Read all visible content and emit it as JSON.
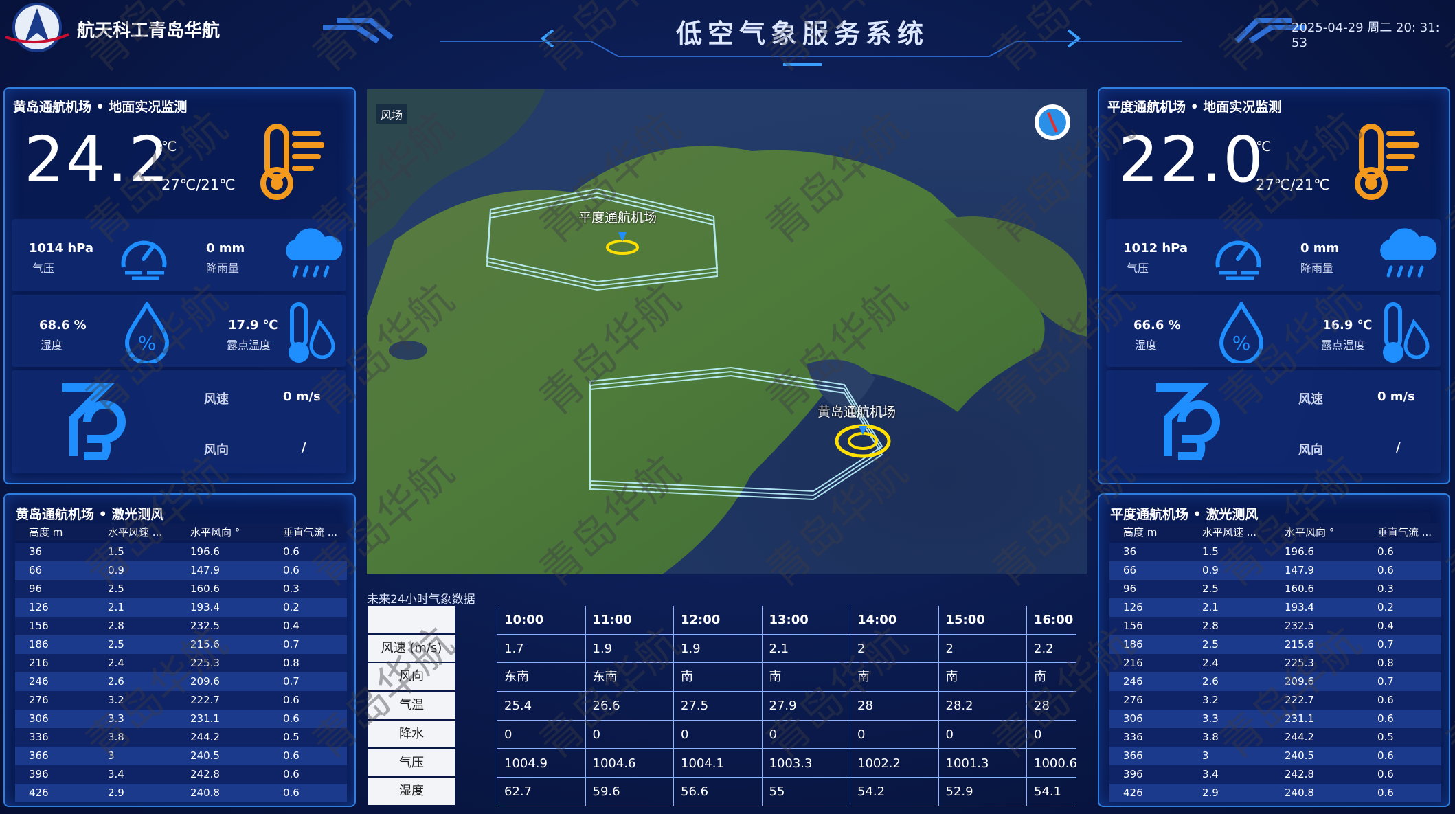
{
  "header": {
    "company": "航天科工青岛华航",
    "title": "低空气象服务系统",
    "datetime": "2025-04-29 周二 20: 31: 53"
  },
  "left_monitor": {
    "title": "黄岛通航机场 • 地面实况监测",
    "temperature": "24.2",
    "temperature_unit": "℃",
    "temperature_range": "27℃/21℃",
    "pressure": "1014 hPa",
    "pressure_label": "气压",
    "rain": "0 mm",
    "rain_label": "降雨量",
    "humidity": "68.6 %",
    "humidity_label": "湿度",
    "dew_point": "17.9 ℃",
    "dew_point_label": "露点温度",
    "wind_speed_label": "风速",
    "wind_speed": "0 m/s",
    "wind_direction_label": "风向",
    "wind_direction": "/"
  },
  "right_monitor": {
    "title": "平度通航机场 • 地面实况监测",
    "temperature": "22.0",
    "temperature_unit": "℃",
    "temperature_range": "27℃/21℃",
    "pressure": "1012 hPa",
    "pressure_label": "气压",
    "rain": "0 mm",
    "rain_label": "降雨量",
    "humidity": "66.6 %",
    "humidity_label": "湿度",
    "dew_point": "16.9 ℃",
    "dew_point_label": "露点温度",
    "wind_speed_label": "风速",
    "wind_speed": "0 m/s",
    "wind_direction_label": "风向",
    "wind_direction": "/"
  },
  "left_lidar": {
    "title": "黄岛通航机场 • 激光测风",
    "columns": [
      "高度 m",
      "水平风速 ...",
      "水平风向 °",
      "垂直气流 ..."
    ],
    "rows": [
      [
        "36",
        "1.5",
        "196.6",
        "0.6"
      ],
      [
        "66",
        "0.9",
        "147.9",
        "0.6"
      ],
      [
        "96",
        "2.5",
        "160.6",
        "0.3"
      ],
      [
        "126",
        "2.1",
        "193.4",
        "0.2"
      ],
      [
        "156",
        "2.8",
        "232.5",
        "0.4"
      ],
      [
        "186",
        "2.5",
        "215.6",
        "0.7"
      ],
      [
        "216",
        "2.4",
        "225.3",
        "0.8"
      ],
      [
        "246",
        "2.6",
        "209.6",
        "0.7"
      ],
      [
        "276",
        "3.2",
        "222.7",
        "0.6"
      ],
      [
        "306",
        "3.3",
        "231.1",
        "0.6"
      ],
      [
        "336",
        "3.8",
        "244.2",
        "0.5"
      ],
      [
        "366",
        "3",
        "240.5",
        "0.6"
      ],
      [
        "396",
        "3.4",
        "242.8",
        "0.6"
      ],
      [
        "426",
        "2.9",
        "240.8",
        "0.6"
      ]
    ]
  },
  "right_lidar": {
    "title": "平度通航机场 • 激光测风",
    "columns": [
      "高度 m",
      "水平风速 ...",
      "水平风向 °",
      "垂直气流 ..."
    ],
    "rows": [
      [
        "36",
        "1.5",
        "196.6",
        "0.6"
      ],
      [
        "66",
        "0.9",
        "147.9",
        "0.6"
      ],
      [
        "96",
        "2.5",
        "160.6",
        "0.3"
      ],
      [
        "126",
        "2.1",
        "193.4",
        "0.2"
      ],
      [
        "156",
        "2.8",
        "232.5",
        "0.4"
      ],
      [
        "186",
        "2.5",
        "215.6",
        "0.7"
      ],
      [
        "216",
        "2.4",
        "225.3",
        "0.8"
      ],
      [
        "246",
        "2.6",
        "209.6",
        "0.7"
      ],
      [
        "276",
        "3.2",
        "222.7",
        "0.6"
      ],
      [
        "306",
        "3.3",
        "231.1",
        "0.6"
      ],
      [
        "336",
        "3.8",
        "244.2",
        "0.5"
      ],
      [
        "366",
        "3",
        "240.5",
        "0.6"
      ],
      [
        "396",
        "3.4",
        "242.8",
        "0.6"
      ],
      [
        "426",
        "2.9",
        "240.8",
        "0.6"
      ]
    ]
  },
  "map": {
    "layer_label": "风场",
    "airports": [
      "平度通航机场",
      "黄岛通航机场"
    ]
  },
  "forecast": {
    "title": "未来24小时气象数据",
    "times": [
      "10:00",
      "11:00",
      "12:00",
      "13:00",
      "14:00",
      "15:00",
      "16:00"
    ],
    "rows": [
      {
        "label": "风速 (m/s)",
        "values": [
          "1.7",
          "1.9",
          "1.9",
          "2.1",
          "2",
          "2",
          "2.2"
        ]
      },
      {
        "label": "风向",
        "values": [
          "东南",
          "东南",
          "南",
          "南",
          "南",
          "南",
          "南"
        ]
      },
      {
        "label": "气温",
        "values": [
          "25.4",
          "26.6",
          "27.5",
          "27.9",
          "28",
          "28.2",
          "28"
        ]
      },
      {
        "label": "降水",
        "values": [
          "0",
          "0",
          "0",
          "0",
          "0",
          "0",
          "0"
        ]
      },
      {
        "label": "气压",
        "values": [
          "1004.9",
          "1004.6",
          "1004.1",
          "1003.3",
          "1002.2",
          "1001.3",
          "1000.6"
        ]
      },
      {
        "label": "湿度",
        "values": [
          "62.7",
          "59.6",
          "56.6",
          "55",
          "54.2",
          "52.9",
          "54.1"
        ]
      }
    ]
  },
  "watermark": "青岛华航"
}
